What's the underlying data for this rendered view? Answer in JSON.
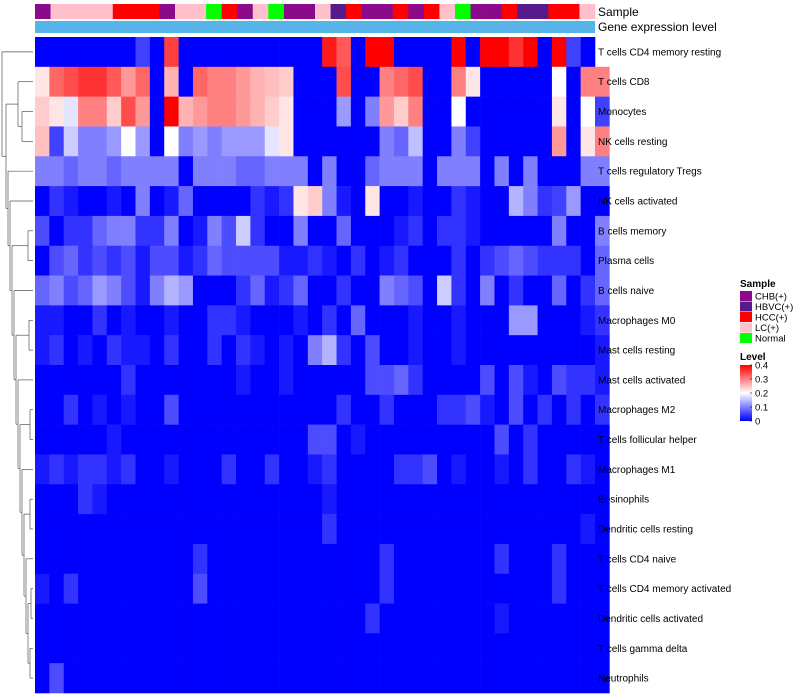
{
  "chart_data": {
    "type": "heatmap",
    "title": "",
    "annotation_tracks": {
      "sample_label": "Sample",
      "level_label": "Gene expression level",
      "sample": [
        "CHB(+)",
        "LC(+)",
        "LC(+)",
        "LC(+)",
        "LC(+)",
        "HCC(+)",
        "HCC(+)",
        "HCC(+)",
        "CHB(+)",
        "LC(+)",
        "LC(+)",
        "Normal",
        "HCC(+)",
        "CHB(+)",
        "LC(+)",
        "Normal",
        "CHB(+)",
        "CHB(+)",
        "LC(+)",
        "HBVC(+)",
        "HCC(+)",
        "CHB(+)",
        "CHB(+)",
        "HCC(+)",
        "CHB(+)",
        "HCC(+)",
        "LC(+)",
        "Normal",
        "CHB(+)",
        "CHB(+)",
        "HCC(+)",
        "HBVC(+)",
        "HBVC(+)",
        "HCC(+)",
        "HCC(+)",
        "LC(+)"
      ]
    },
    "rows": [
      "T cells CD4 memory resting",
      "T cells CD8",
      "Monocytes",
      "NK cells resting",
      "T cells regulatory  Tregs",
      "NK cells activated",
      "B cells memory",
      "Plasma cells",
      "B cells naive",
      "Macrophages M0",
      "Mast cells resting",
      "Mast cells activated",
      "Macrophages M2",
      "T cells follicular helper",
      "Macrophages M1",
      "Eosinophils",
      "Dendritic cells resting",
      "T cells CD4 naive",
      "T cells CD4 memory activated",
      "Dendritic cells activated",
      "T cells gamma delta",
      "Neutrophils"
    ],
    "values": [
      [
        0.0,
        0.0,
        0.0,
        0.0,
        0.0,
        0.0,
        0.0,
        0.05,
        0.0,
        0.35,
        0.0,
        0.0,
        0.0,
        0.0,
        0.0,
        0.0,
        0.0,
        0.0,
        0.0,
        0.0,
        0.38,
        0.33,
        0.0,
        0.42,
        0.42,
        0.0,
        0.0,
        0.0,
        0.0,
        0.4,
        0.0,
        0.4,
        0.4,
        0.36,
        0.4,
        0.0,
        0.4,
        0.05,
        0.0
      ],
      [
        0.22,
        0.32,
        0.34,
        0.36,
        0.36,
        0.33,
        0.28,
        0.32,
        0.0,
        0.26,
        0.0,
        0.32,
        0.3,
        0.3,
        0.28,
        0.26,
        0.25,
        0.24,
        0.0,
        0.0,
        0.0,
        0.34,
        0.0,
        0.0,
        0.3,
        0.32,
        0.34,
        0.0,
        0.0,
        0.3,
        0.22,
        0.0,
        0.0,
        0.0,
        0.0,
        0.0,
        0.2,
        0.0,
        0.3,
        0.3
      ],
      [
        0.24,
        0.22,
        0.18,
        0.3,
        0.3,
        0.24,
        0.34,
        0.28,
        0.0,
        0.4,
        0.26,
        0.28,
        0.3,
        0.3,
        0.28,
        0.26,
        0.24,
        0.22,
        0.0,
        0.0,
        0.0,
        0.12,
        0.0,
        0.1,
        0.28,
        0.24,
        0.3,
        0.0,
        0.0,
        0.2,
        0.0,
        0.0,
        0.0,
        0.0,
        0.0,
        0.0,
        0.22,
        0.0,
        0.2,
        0.05
      ],
      [
        0.25,
        0.05,
        0.16,
        0.1,
        0.1,
        0.12,
        0.2,
        0.12,
        0.0,
        0.2,
        0.1,
        0.12,
        0.1,
        0.12,
        0.12,
        0.12,
        0.18,
        0.22,
        0.0,
        0.0,
        0.0,
        0.0,
        0.0,
        0.0,
        0.1,
        0.08,
        0.15,
        0.0,
        0.0,
        0.1,
        0.05,
        0.0,
        0.0,
        0.0,
        0.0,
        0.0,
        0.28,
        0.0,
        0.22,
        0.3
      ],
      [
        0.1,
        0.1,
        0.08,
        0.1,
        0.1,
        0.08,
        0.1,
        0.1,
        0.1,
        0.1,
        0.0,
        0.1,
        0.1,
        0.1,
        0.08,
        0.08,
        0.1,
        0.1,
        0.1,
        0.0,
        0.1,
        0.0,
        0.0,
        0.08,
        0.1,
        0.1,
        0.1,
        0.0,
        0.1,
        0.1,
        0.1,
        0.0,
        0.1,
        0.0,
        0.1,
        0.0,
        0.0,
        0.0,
        0.1,
        0.1
      ],
      [
        0.0,
        0.04,
        0.02,
        0.0,
        0.0,
        0.02,
        0.0,
        0.1,
        0.0,
        0.02,
        0.08,
        0.0,
        0.0,
        0.0,
        0.0,
        0.04,
        0.02,
        0.04,
        0.22,
        0.24,
        0.1,
        0.02,
        0.0,
        0.22,
        0.0,
        0.0,
        0.02,
        0.0,
        0.0,
        0.04,
        0.02,
        0.0,
        0.0,
        0.14,
        0.1,
        0.04,
        0.05,
        0.12,
        0.0,
        0.0
      ],
      [
        0.06,
        0.0,
        0.04,
        0.04,
        0.08,
        0.1,
        0.1,
        0.04,
        0.04,
        0.1,
        0.0,
        0.02,
        0.1,
        0.06,
        0.16,
        0.04,
        0.0,
        0.0,
        0.1,
        0.0,
        0.0,
        0.08,
        0.0,
        0.0,
        0.0,
        0.02,
        0.04,
        0.0,
        0.04,
        0.04,
        0.02,
        0.0,
        0.0,
        0.0,
        0.0,
        0.0,
        0.1,
        0.0,
        0.0,
        0.1
      ],
      [
        0.0,
        0.06,
        0.08,
        0.04,
        0.06,
        0.04,
        0.06,
        0.02,
        0.06,
        0.06,
        0.02,
        0.04,
        0.08,
        0.06,
        0.06,
        0.06,
        0.06,
        0.02,
        0.02,
        0.04,
        0.02,
        0.0,
        0.04,
        0.0,
        0.02,
        0.04,
        0.0,
        0.0,
        0.0,
        0.04,
        0.0,
        0.04,
        0.06,
        0.08,
        0.06,
        0.04,
        0.04,
        0.04,
        0.0,
        0.08
      ],
      [
        0.08,
        0.1,
        0.06,
        0.08,
        0.12,
        0.1,
        0.06,
        0.02,
        0.1,
        0.14,
        0.12,
        0.0,
        0.0,
        0.0,
        0.04,
        0.08,
        0.02,
        0.04,
        0.08,
        0.0,
        0.0,
        0.04,
        0.0,
        0.0,
        0.1,
        0.08,
        0.06,
        0.0,
        0.16,
        0.04,
        0.0,
        0.1,
        0.0,
        0.04,
        0.0,
        0.0,
        0.08,
        0.0,
        0.04,
        0.08
      ],
      [
        0.02,
        0.02,
        0.0,
        0.0,
        0.04,
        0.0,
        0.02,
        0.0,
        0.0,
        0.02,
        0.0,
        0.0,
        0.04,
        0.04,
        0.02,
        0.0,
        0.0,
        0.0,
        0.02,
        0.0,
        0.04,
        0.0,
        0.08,
        0.0,
        0.0,
        0.0,
        0.02,
        0.0,
        0.0,
        0.02,
        0.0,
        0.0,
        0.0,
        0.12,
        0.12,
        0.0,
        0.0,
        0.0,
        0.02,
        0.04
      ],
      [
        0.02,
        0.04,
        0.0,
        0.02,
        0.0,
        0.04,
        0.02,
        0.02,
        0.0,
        0.04,
        0.0,
        0.0,
        0.04,
        0.0,
        0.04,
        0.02,
        0.0,
        0.02,
        0.0,
        0.1,
        0.14,
        0.04,
        0.0,
        0.06,
        0.0,
        0.0,
        0.02,
        0.0,
        0.0,
        0.02,
        0.0,
        0.0,
        0.0,
        0.0,
        0.0,
        0.0,
        0.0,
        0.0,
        0.0,
        0.02
      ],
      [
        0.0,
        0.0,
        0.0,
        0.0,
        0.0,
        0.0,
        0.04,
        0.0,
        0.0,
        0.0,
        0.0,
        0.0,
        0.0,
        0.0,
        0.02,
        0.0,
        0.0,
        0.02,
        0.0,
        0.0,
        0.0,
        0.0,
        0.0,
        0.06,
        0.06,
        0.08,
        0.04,
        0.0,
        0.0,
        0.0,
        0.0,
        0.06,
        0.0,
        0.06,
        0.02,
        0.0,
        0.06,
        0.04,
        0.04,
        0.02
      ],
      [
        0.0,
        0.0,
        0.04,
        0.0,
        0.02,
        0.0,
        0.02,
        0.0,
        0.0,
        0.06,
        0.0,
        0.0,
        0.0,
        0.0,
        0.0,
        0.0,
        0.0,
        0.0,
        0.0,
        0.0,
        0.0,
        0.04,
        0.0,
        0.0,
        0.04,
        0.0,
        0.0,
        0.0,
        0.04,
        0.04,
        0.06,
        0.02,
        0.0,
        0.06,
        0.0,
        0.04,
        0.0,
        0.04,
        0.0,
        0.04
      ],
      [
        0.0,
        0.0,
        0.0,
        0.0,
        0.0,
        0.02,
        0.0,
        0.0,
        0.0,
        0.0,
        0.0,
        0.0,
        0.0,
        0.0,
        0.0,
        0.0,
        0.0,
        0.0,
        0.0,
        0.06,
        0.06,
        0.0,
        0.02,
        0.0,
        0.0,
        0.0,
        0.0,
        0.0,
        0.0,
        0.0,
        0.0,
        0.0,
        0.06,
        0.0,
        0.04,
        0.0,
        0.0,
        0.0,
        0.0,
        0.0
      ],
      [
        0.02,
        0.04,
        0.02,
        0.04,
        0.04,
        0.02,
        0.04,
        0.0,
        0.0,
        0.02,
        0.0,
        0.0,
        0.0,
        0.04,
        0.0,
        0.0,
        0.04,
        0.0,
        0.0,
        0.02,
        0.04,
        0.0,
        0.0,
        0.0,
        0.0,
        0.04,
        0.04,
        0.06,
        0.0,
        0.02,
        0.0,
        0.0,
        0.02,
        0.0,
        0.04,
        0.0,
        0.0,
        0.04,
        0.02,
        0.0
      ],
      [
        0.0,
        0.0,
        0.0,
        0.04,
        0.02,
        0.0,
        0.0,
        0.0,
        0.0,
        0.0,
        0.0,
        0.0,
        0.0,
        0.0,
        0.0,
        0.0,
        0.0,
        0.0,
        0.0,
        0.0,
        0.02,
        0.0,
        0.0,
        0.0,
        0.0,
        0.0,
        0.0,
        0.0,
        0.0,
        0.0,
        0.0,
        0.0,
        0.0,
        0.0,
        0.0,
        0.0,
        0.0,
        0.0,
        0.0,
        0.0
      ],
      [
        0.0,
        0.0,
        0.0,
        0.0,
        0.0,
        0.0,
        0.0,
        0.0,
        0.0,
        0.0,
        0.0,
        0.0,
        0.0,
        0.0,
        0.0,
        0.0,
        0.0,
        0.0,
        0.0,
        0.0,
        0.04,
        0.0,
        0.0,
        0.0,
        0.0,
        0.0,
        0.0,
        0.0,
        0.0,
        0.0,
        0.0,
        0.0,
        0.0,
        0.0,
        0.0,
        0.0,
        0.0,
        0.0,
        0.02,
        0.0
      ],
      [
        0.0,
        0.0,
        0.0,
        0.0,
        0.0,
        0.0,
        0.0,
        0.0,
        0.0,
        0.0,
        0.0,
        0.04,
        0.0,
        0.0,
        0.0,
        0.0,
        0.0,
        0.0,
        0.0,
        0.0,
        0.0,
        0.0,
        0.0,
        0.0,
        0.04,
        0.0,
        0.0,
        0.0,
        0.0,
        0.0,
        0.0,
        0.0,
        0.04,
        0.0,
        0.0,
        0.0,
        0.04,
        0.0,
        0.0,
        0.0
      ],
      [
        0.02,
        0.0,
        0.04,
        0.0,
        0.0,
        0.0,
        0.0,
        0.0,
        0.0,
        0.0,
        0.0,
        0.06,
        0.0,
        0.0,
        0.0,
        0.0,
        0.0,
        0.0,
        0.0,
        0.0,
        0.0,
        0.0,
        0.0,
        0.0,
        0.04,
        0.0,
        0.0,
        0.0,
        0.0,
        0.0,
        0.0,
        0.0,
        0.0,
        0.0,
        0.0,
        0.0,
        0.04,
        0.0,
        0.0,
        0.0
      ],
      [
        0.0,
        0.0,
        0.0,
        0.0,
        0.0,
        0.0,
        0.0,
        0.0,
        0.0,
        0.0,
        0.0,
        0.0,
        0.0,
        0.0,
        0.0,
        0.0,
        0.0,
        0.0,
        0.0,
        0.0,
        0.0,
        0.0,
        0.0,
        0.04,
        0.0,
        0.0,
        0.0,
        0.0,
        0.0,
        0.0,
        0.0,
        0.0,
        0.02,
        0.0,
        0.0,
        0.0,
        0.0,
        0.0,
        0.0,
        0.0
      ],
      [
        0.0,
        0.0,
        0.0,
        0.0,
        0.0,
        0.0,
        0.0,
        0.0,
        0.0,
        0.0,
        0.0,
        0.0,
        0.0,
        0.0,
        0.0,
        0.0,
        0.0,
        0.0,
        0.0,
        0.0,
        0.0,
        0.0,
        0.0,
        0.0,
        0.0,
        0.0,
        0.0,
        0.0,
        0.0,
        0.0,
        0.0,
        0.0,
        0.0,
        0.0,
        0.0,
        0.0,
        0.0,
        0.0,
        0.0,
        0.0
      ],
      [
        0.0,
        0.06,
        0.0,
        0.0,
        0.0,
        0.0,
        0.0,
        0.0,
        0.0,
        0.0,
        0.0,
        0.0,
        0.0,
        0.0,
        0.0,
        0.0,
        0.0,
        0.0,
        0.0,
        0.0,
        0.0,
        0.0,
        0.0,
        0.0,
        0.0,
        0.0,
        0.0,
        0.0,
        0.0,
        0.0,
        0.0,
        0.0,
        0.0,
        0.0,
        0.0,
        0.0,
        0.0,
        0.0,
        0.0,
        0.0
      ]
    ],
    "value_range": [
      0,
      0.4
    ],
    "legend": {
      "sample": {
        "title": "Sample",
        "entries": [
          {
            "label": "CHB(+)",
            "color": "#8b0a8b"
          },
          {
            "label": "HBVC(+)",
            "color": "#551a8b"
          },
          {
            "label": "HCC(+)",
            "color": "#ff0000"
          },
          {
            "label": "LC(+)",
            "color": "#ffc0cb"
          },
          {
            "label": "Normal",
            "color": "#00ff00"
          }
        ]
      },
      "level": {
        "title": "Level",
        "ticks": [
          "0.4",
          "0.3",
          "0.2",
          "0.1",
          "0"
        ],
        "tick_values": [
          0.4,
          0.3,
          0.2,
          0.1,
          0
        ],
        "colors": {
          "low": "#0000ff",
          "mid": "#ffffff",
          "high": "#ff0000"
        }
      },
      "placement": "right"
    },
    "level_track_color": "#56b4e9"
  }
}
